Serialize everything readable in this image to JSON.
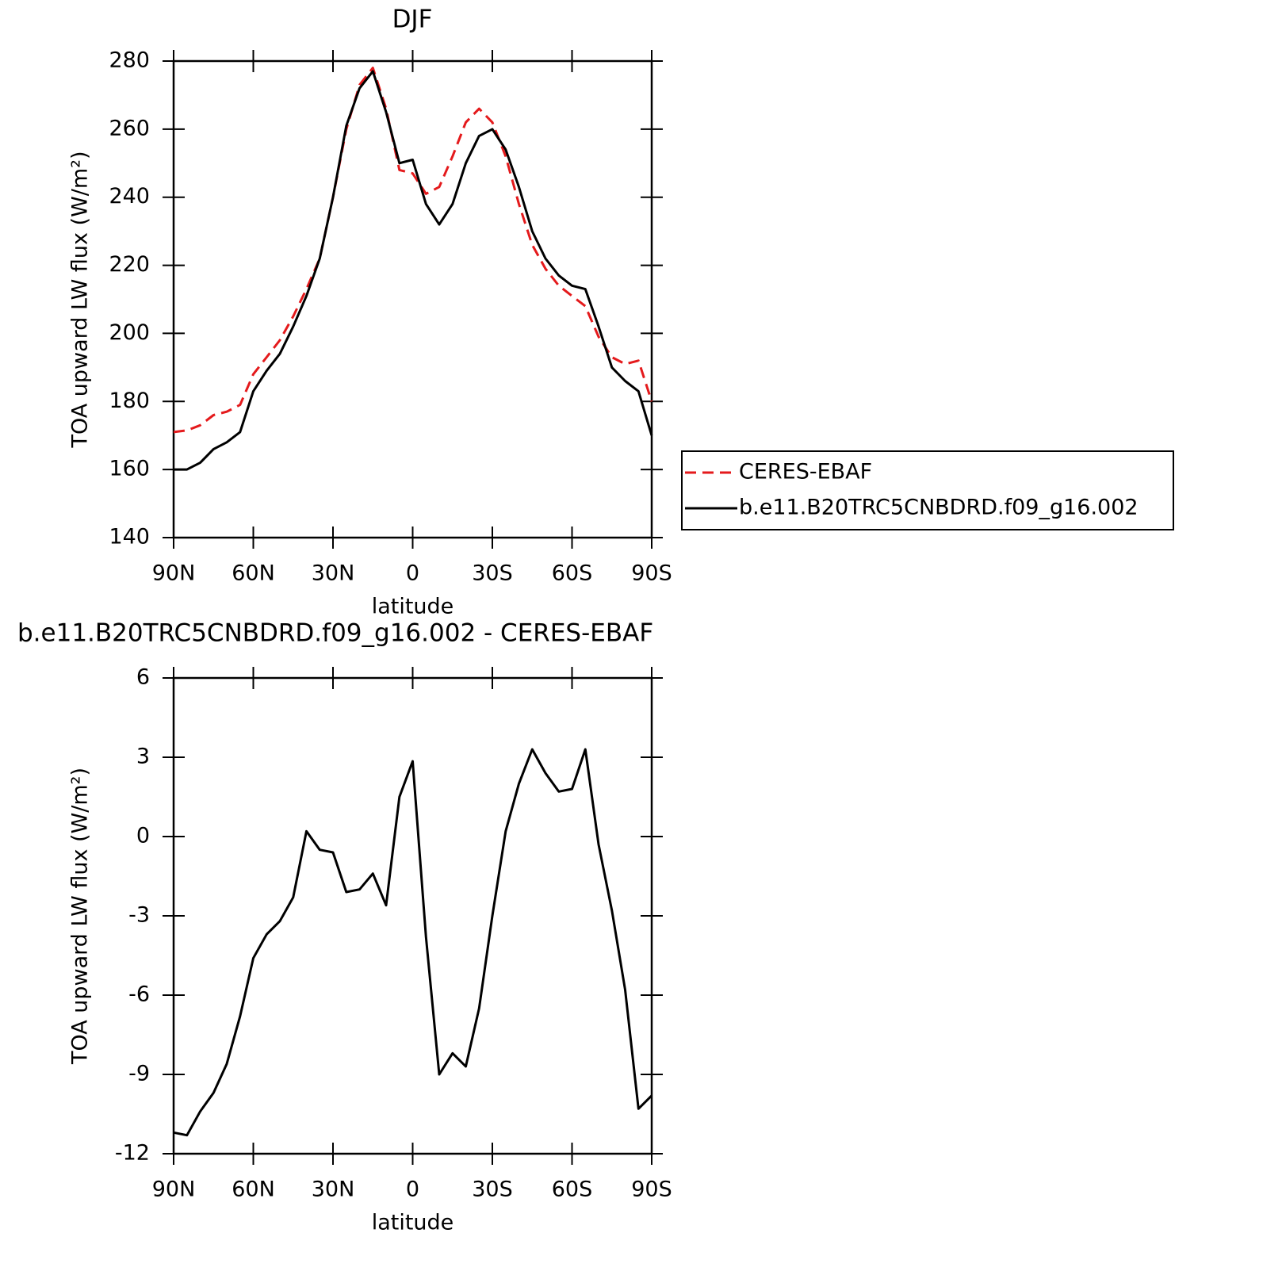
{
  "chart_data": [
    {
      "type": "line",
      "title": "DJF",
      "xlabel": "latitude",
      "ylabel": "TOA upward LW flux (W/m²)",
      "x": [
        90,
        85,
        80,
        75,
        70,
        65,
        60,
        55,
        50,
        45,
        40,
        35,
        30,
        25,
        20,
        15,
        10,
        5,
        0,
        -5,
        -10,
        -15,
        -20,
        -25,
        -30,
        -35,
        -40,
        -45,
        -50,
        -55,
        -60,
        -65,
        -70,
        -75,
        -80,
        -85,
        -90
      ],
      "series": [
        {
          "name": "CERES-EBAF",
          "color": "#e41a1c",
          "line_style": "dashed",
          "values": [
            171,
            171.5,
            173,
            176,
            177,
            179,
            188,
            193,
            198,
            205,
            213,
            222,
            240,
            260,
            273,
            278,
            266,
            248,
            247,
            241,
            243,
            252,
            262,
            266,
            262,
            252,
            238,
            226,
            219,
            214,
            211,
            208,
            199,
            193,
            191,
            192,
            180
          ]
        },
        {
          "name": "b.e11.B20TRC5CNBDRD.f09_g16.002",
          "color": "#000000",
          "line_style": "solid",
          "values": [
            160,
            160,
            162,
            166,
            168,
            171,
            183,
            189,
            194,
            202,
            211,
            222,
            240,
            261,
            272,
            277,
            265,
            250,
            251,
            238,
            232,
            238,
            250,
            258,
            260,
            254,
            243,
            230,
            222,
            217,
            214,
            213,
            202,
            190,
            186,
            183,
            170
          ]
        }
      ],
      "xlim": [
        90,
        -90
      ],
      "xticks": [
        {
          "value": 90,
          "label": "90N"
        },
        {
          "value": 60,
          "label": "60N"
        },
        {
          "value": 30,
          "label": "30N"
        },
        0,
        {
          "value": -30,
          "label": "30S"
        },
        {
          "value": -60,
          "label": "60S"
        },
        {
          "value": -90,
          "label": "90S"
        }
      ],
      "ylim": [
        140,
        280
      ],
      "yticks": [
        140,
        160,
        180,
        200,
        220,
        240,
        260,
        280
      ],
      "legend": "right"
    },
    {
      "type": "line",
      "title": "b.e11.B20TRC5CNBDRD.f09_g16.002 - CERES-EBAF",
      "xlabel": "latitude",
      "ylabel": "TOA upward LW flux (W/m²)",
      "x": [
        90,
        85,
        80,
        75,
        70,
        65,
        60,
        55,
        50,
        45,
        40,
        35,
        30,
        25,
        20,
        15,
        10,
        5,
        0,
        -5,
        -10,
        -15,
        -20,
        -25,
        -30,
        -35,
        -40,
        -45,
        -50,
        -55,
        -60,
        -65,
        -70,
        -75,
        -80,
        -85,
        -90
      ],
      "values": [
        -11.2,
        -11.3,
        -10.4,
        -9.7,
        -8.6,
        -6.8,
        -4.6,
        -3.7,
        -3.2,
        -2.3,
        0.2,
        -0.5,
        -0.6,
        -2.1,
        -2.0,
        -1.4,
        -2.6,
        1.5,
        2.85,
        -3.8,
        -9.0,
        -8.2,
        -8.7,
        -6.5,
        -3.0,
        0.2,
        2.0,
        3.3,
        2.4,
        1.7,
        1.8,
        3.3,
        -0.3,
        -2.8,
        -5.8,
        -10.3,
        -9.8
      ],
      "color": "#000000",
      "xlim": [
        90,
        -90
      ],
      "xticks": [
        {
          "value": 90,
          "label": "90N"
        },
        {
          "value": 60,
          "label": "60N"
        },
        {
          "value": 30,
          "label": "30N"
        },
        0,
        {
          "value": -30,
          "label": "30S"
        },
        {
          "value": -60,
          "label": "60S"
        },
        {
          "value": -90,
          "label": "90S"
        }
      ],
      "ylim": [
        -12,
        6
      ],
      "yticks": [
        -12,
        -9,
        -6,
        -3,
        0,
        3,
        6
      ]
    }
  ]
}
